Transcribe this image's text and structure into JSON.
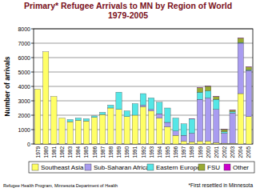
{
  "chart_data": {
    "type": "bar",
    "stacked": true,
    "title": "Primary* Refugee Arrivals to MN by Region of World 1979-2005",
    "y_label": "Number of arrivals",
    "annotations": [
      "Refugee Health Program, Minnesota Department of Health",
      "*First resettled in Minnesota"
    ],
    "categories": [
      "1979",
      "1980",
      "1981",
      "1982",
      "1983",
      "1984",
      "1985",
      "1986",
      "1987",
      "1988",
      "1989",
      "1990",
      "1991",
      "1992",
      "1993",
      "1994",
      "1995",
      "1996",
      "1997",
      "1998",
      "1999",
      "2000",
      "2001",
      "2002",
      "2003",
      "2004",
      "2005"
    ],
    "series": [
      {
        "name": "Southeast Asia",
        "color": "#ffff66",
        "values": [
          3800,
          6400,
          3300,
          1800,
          1550,
          1650,
          1600,
          1850,
          2050,
          2500,
          2400,
          1900,
          2000,
          2600,
          2300,
          1800,
          1200,
          600,
          200,
          150,
          200,
          200,
          100,
          50,
          50,
          3500,
          1900
        ]
      },
      {
        "name": "Sub-Saharan Africa",
        "color": "#a99cf0",
        "values": [
          0,
          0,
          0,
          0,
          0,
          0,
          0,
          0,
          0,
          0,
          0,
          0,
          0,
          100,
          100,
          300,
          300,
          300,
          400,
          600,
          2900,
          3000,
          2300,
          700,
          2100,
          3500,
          3200
        ]
      },
      {
        "name": "Eastern Europe",
        "color": "#55e6e6",
        "values": [
          0,
          0,
          0,
          0,
          150,
          150,
          150,
          100,
          150,
          200,
          1200,
          400,
          800,
          800,
          800,
          800,
          1000,
          900,
          800,
          1000,
          500,
          500,
          700,
          100,
          100,
          50,
          50
        ]
      },
      {
        "name": "FSU",
        "color": "#99aa33",
        "values": [
          0,
          0,
          0,
          0,
          0,
          0,
          0,
          0,
          0,
          0,
          0,
          0,
          0,
          0,
          0,
          0,
          0,
          0,
          0,
          0,
          300,
          300,
          200,
          150,
          100,
          300,
          200
        ]
      },
      {
        "name": "Other",
        "color": "#cc00cc",
        "values": [
          0,
          0,
          0,
          0,
          0,
          0,
          0,
          0,
          0,
          0,
          0,
          0,
          0,
          0,
          0,
          0,
          0,
          0,
          0,
          20,
          20,
          20,
          20,
          20,
          20,
          20,
          20
        ]
      }
    ],
    "ylim": [
      0,
      8000
    ],
    "yticks": [
      0,
      1000,
      2000,
      3000,
      4000,
      5000,
      6000,
      7000,
      8000
    ],
    "grid": true,
    "legend": "bottom"
  }
}
